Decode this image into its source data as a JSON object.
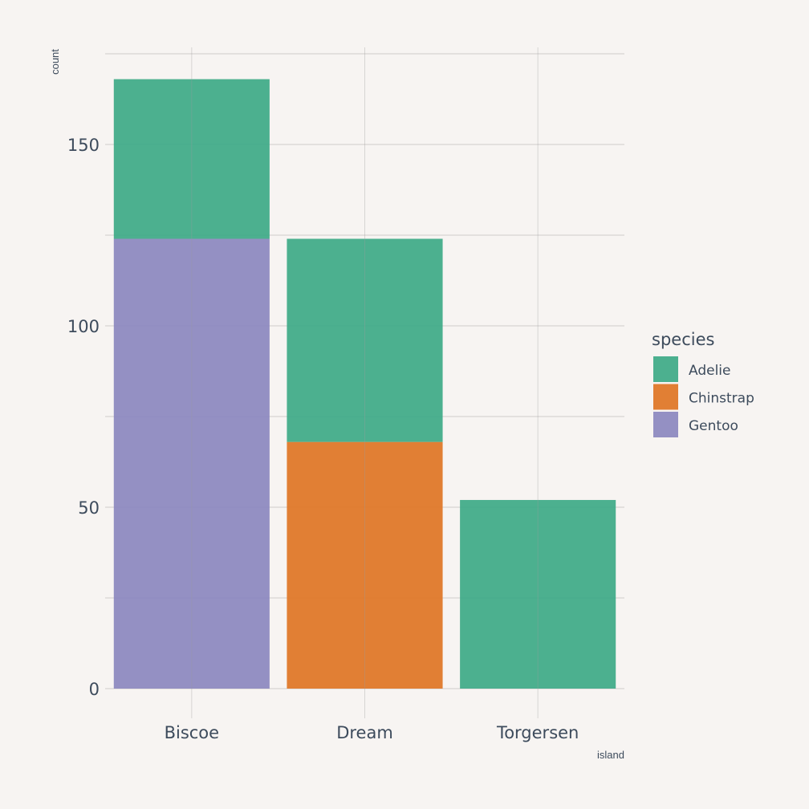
{
  "chart_data": {
    "type": "bar",
    "stacked": true,
    "categories": [
      "Biscoe",
      "Dream",
      "Torgersen"
    ],
    "series": [
      {
        "name": "Gentoo",
        "values": [
          124,
          0,
          0
        ],
        "color": "#8c88c0"
      },
      {
        "name": "Chinstrap",
        "values": [
          0,
          68,
          0
        ],
        "color": "#df7526"
      },
      {
        "name": "Adelie",
        "values": [
          44,
          56,
          52
        ],
        "color": "#3eaa88"
      }
    ],
    "legend": {
      "title": "species",
      "entries": [
        "Adelie",
        "Chinstrap",
        "Gentoo"
      ],
      "position": "right"
    },
    "xlabel": "island",
    "ylabel": "count",
    "yticks": [
      0,
      50,
      100,
      150
    ],
    "ylim": [
      0,
      176
    ],
    "grid": true,
    "background": "#f7f4f2"
  }
}
